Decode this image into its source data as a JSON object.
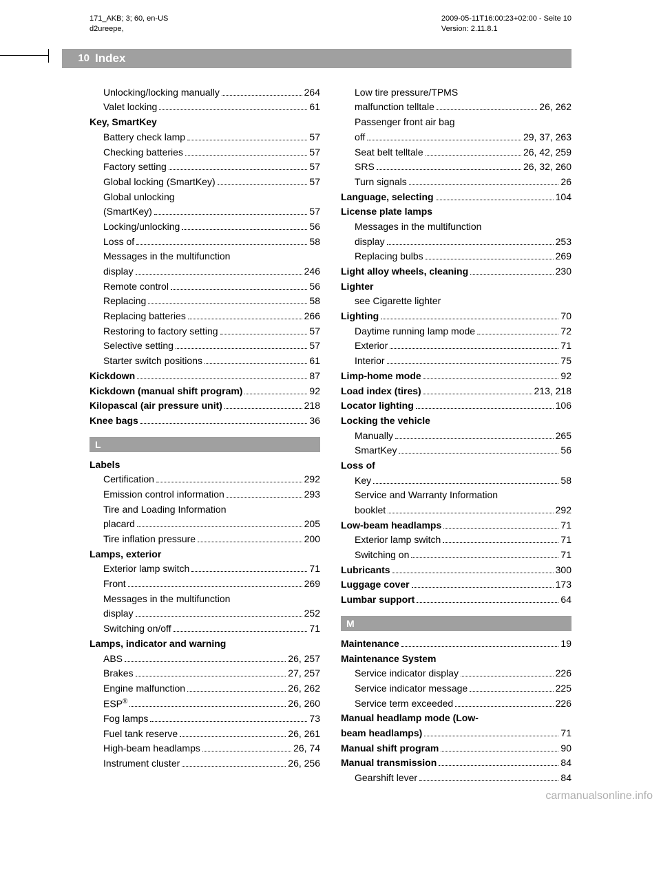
{
  "meta": {
    "topLeft1": "171_AKB; 3; 60, en-US",
    "topLeft2": "d2ureepe,",
    "topRight1": "2009-05-11T16:00:23+02:00 - Seite 10",
    "topRight2": "Version: 2.11.8.1"
  },
  "header": {
    "pageNumber": "10",
    "title": "Index"
  },
  "leftCol": [
    {
      "type": "entry",
      "sub": true,
      "label": "Unlocking/locking manually",
      "page": "264"
    },
    {
      "type": "entry",
      "sub": true,
      "label": "Valet locking",
      "page": "61"
    },
    {
      "type": "heading",
      "label": "Key, SmartKey"
    },
    {
      "type": "entry",
      "sub": true,
      "label": "Battery check lamp",
      "page": "57"
    },
    {
      "type": "entry",
      "sub": true,
      "label": "Checking batteries",
      "page": "57"
    },
    {
      "type": "entry",
      "sub": true,
      "label": "Factory setting",
      "page": "57"
    },
    {
      "type": "entry",
      "sub": true,
      "label": "Global locking (SmartKey)",
      "page": "57"
    },
    {
      "type": "line",
      "sub": true,
      "label": "Global unlocking"
    },
    {
      "type": "entry",
      "sub": true,
      "label": "(SmartKey)",
      "page": "57"
    },
    {
      "type": "entry",
      "sub": true,
      "label": "Locking/unlocking",
      "page": "56"
    },
    {
      "type": "entry",
      "sub": true,
      "label": "Loss of",
      "page": "58"
    },
    {
      "type": "line",
      "sub": true,
      "label": "Messages in the multifunction"
    },
    {
      "type": "entry",
      "sub": true,
      "label": "display",
      "page": "246"
    },
    {
      "type": "entry",
      "sub": true,
      "label": "Remote control",
      "page": "56"
    },
    {
      "type": "entry",
      "sub": true,
      "label": "Replacing",
      "page": "58"
    },
    {
      "type": "entry",
      "sub": true,
      "label": "Replacing batteries",
      "page": "266"
    },
    {
      "type": "entry",
      "sub": true,
      "label": "Restoring to factory setting",
      "page": "57"
    },
    {
      "type": "entry",
      "sub": true,
      "label": "Selective setting",
      "page": "57"
    },
    {
      "type": "entry",
      "sub": true,
      "label": "Starter switch positions",
      "page": "61"
    },
    {
      "type": "entry",
      "bold": true,
      "label": "Kickdown",
      "page": "87"
    },
    {
      "type": "entry",
      "bold": true,
      "label": "Kickdown (manual shift program)",
      "page": "92"
    },
    {
      "type": "entry",
      "bold": true,
      "label": "Kilopascal (air pressure unit)",
      "page": "218"
    },
    {
      "type": "entry",
      "bold": true,
      "label": "Knee bags",
      "page": "36"
    },
    {
      "type": "letter",
      "label": "L"
    },
    {
      "type": "heading",
      "label": "Labels"
    },
    {
      "type": "entry",
      "sub": true,
      "label": "Certification",
      "page": "292"
    },
    {
      "type": "entry",
      "sub": true,
      "label": "Emission control information",
      "page": "293"
    },
    {
      "type": "line",
      "sub": true,
      "label": "Tire and Loading Information"
    },
    {
      "type": "entry",
      "sub": true,
      "label": "placard",
      "page": "205"
    },
    {
      "type": "entry",
      "sub": true,
      "label": "Tire inflation pressure",
      "page": "200"
    },
    {
      "type": "heading",
      "label": "Lamps, exterior"
    },
    {
      "type": "entry",
      "sub": true,
      "label": "Exterior lamp switch",
      "page": "71"
    },
    {
      "type": "entry",
      "sub": true,
      "label": "Front",
      "page": "269"
    },
    {
      "type": "line",
      "sub": true,
      "label": "Messages in the multifunction"
    },
    {
      "type": "entry",
      "sub": true,
      "label": "display",
      "page": "252"
    },
    {
      "type": "entry",
      "sub": true,
      "label": "Switching on/off",
      "page": "71"
    },
    {
      "type": "heading",
      "label": "Lamps, indicator and warning"
    },
    {
      "type": "entry",
      "sub": true,
      "label": "ABS",
      "page": "26, 257"
    },
    {
      "type": "entry",
      "sub": true,
      "label": "Brakes",
      "page": "27, 257"
    },
    {
      "type": "entry",
      "sub": true,
      "label": "Engine malfunction",
      "page": "26, 262"
    },
    {
      "type": "entry",
      "sub": true,
      "html": true,
      "label": "ESP<sup>®</sup>",
      "page": "26, 260"
    },
    {
      "type": "entry",
      "sub": true,
      "label": "Fog lamps",
      "page": "73"
    },
    {
      "type": "entry",
      "sub": true,
      "label": "Fuel tank reserve",
      "page": "26, 261"
    },
    {
      "type": "entry",
      "sub": true,
      "label": "High-beam headlamps",
      "page": "26, 74"
    },
    {
      "type": "entry",
      "sub": true,
      "label": "Instrument cluster",
      "page": "26, 256"
    }
  ],
  "rightCol": [
    {
      "type": "line",
      "sub": true,
      "label": "Low tire pressure/TPMS"
    },
    {
      "type": "entry",
      "sub": true,
      "label": "malfunction telltale",
      "page": "26, 262"
    },
    {
      "type": "line",
      "sub": true,
      "label": "Passenger front air bag"
    },
    {
      "type": "entry",
      "sub": true,
      "label": "off",
      "page": "29, 37, 263"
    },
    {
      "type": "entry",
      "sub": true,
      "label": "Seat belt telltale",
      "page": "26, 42, 259"
    },
    {
      "type": "entry",
      "sub": true,
      "label": "SRS",
      "page": "26, 32, 260"
    },
    {
      "type": "entry",
      "sub": true,
      "label": "Turn signals",
      "page": "26"
    },
    {
      "type": "entry",
      "bold": true,
      "label": "Language, selecting",
      "page": "104"
    },
    {
      "type": "heading",
      "label": "License plate lamps"
    },
    {
      "type": "line",
      "sub": true,
      "label": "Messages in the multifunction"
    },
    {
      "type": "entry",
      "sub": true,
      "label": "display",
      "page": "253"
    },
    {
      "type": "entry",
      "sub": true,
      "label": "Replacing bulbs",
      "page": "269"
    },
    {
      "type": "entry",
      "bold": true,
      "label": "Light alloy wheels, cleaning",
      "page": "230"
    },
    {
      "type": "heading",
      "label": "Lighter"
    },
    {
      "type": "see",
      "label": "see Cigarette lighter"
    },
    {
      "type": "entry",
      "bold": true,
      "label": "Lighting",
      "page": "70"
    },
    {
      "type": "entry",
      "sub": true,
      "label": "Daytime running lamp mode",
      "page": "72"
    },
    {
      "type": "entry",
      "sub": true,
      "label": "Exterior",
      "page": "71"
    },
    {
      "type": "entry",
      "sub": true,
      "label": "Interior",
      "page": "75"
    },
    {
      "type": "entry",
      "bold": true,
      "label": "Limp-home mode",
      "page": "92"
    },
    {
      "type": "entry",
      "bold": true,
      "label": "Load index (tires)",
      "page": "213, 218"
    },
    {
      "type": "entry",
      "bold": true,
      "label": "Locator lighting",
      "page": "106"
    },
    {
      "type": "heading",
      "label": "Locking the vehicle"
    },
    {
      "type": "entry",
      "sub": true,
      "label": "Manually",
      "page": "265"
    },
    {
      "type": "entry",
      "sub": true,
      "label": "SmartKey",
      "page": "56"
    },
    {
      "type": "heading",
      "label": "Loss of"
    },
    {
      "type": "entry",
      "sub": true,
      "label": "Key",
      "page": "58"
    },
    {
      "type": "line",
      "sub": true,
      "label": "Service and Warranty Information"
    },
    {
      "type": "entry",
      "sub": true,
      "label": "booklet",
      "page": "292"
    },
    {
      "type": "entry",
      "bold": true,
      "label": "Low-beam headlamps",
      "page": "71"
    },
    {
      "type": "entry",
      "sub": true,
      "label": "Exterior lamp switch",
      "page": "71"
    },
    {
      "type": "entry",
      "sub": true,
      "label": "Switching on",
      "page": "71"
    },
    {
      "type": "entry",
      "bold": true,
      "label": "Lubricants",
      "page": "300"
    },
    {
      "type": "entry",
      "bold": true,
      "label": "Luggage cover",
      "page": "173"
    },
    {
      "type": "entry",
      "bold": true,
      "label": "Lumbar support",
      "page": "64"
    },
    {
      "type": "letter",
      "label": "M"
    },
    {
      "type": "entry",
      "bold": true,
      "label": "Maintenance",
      "page": "19"
    },
    {
      "type": "heading",
      "label": "Maintenance System"
    },
    {
      "type": "entry",
      "sub": true,
      "label": "Service indicator display",
      "page": "226"
    },
    {
      "type": "entry",
      "sub": true,
      "label": "Service indicator message",
      "page": "225"
    },
    {
      "type": "entry",
      "sub": true,
      "label": "Service term exceeded",
      "page": "226"
    },
    {
      "type": "line",
      "bold": true,
      "label": "Manual headlamp mode (Low-"
    },
    {
      "type": "entry",
      "bold": true,
      "label": "beam headlamps)",
      "page": "71"
    },
    {
      "type": "entry",
      "bold": true,
      "label": "Manual shift program",
      "page": "90"
    },
    {
      "type": "entry",
      "bold": true,
      "label": "Manual transmission",
      "page": "84"
    },
    {
      "type": "entry",
      "sub": true,
      "label": "Gearshift lever",
      "page": "84"
    }
  ],
  "watermark": "carmanualsonline.info"
}
